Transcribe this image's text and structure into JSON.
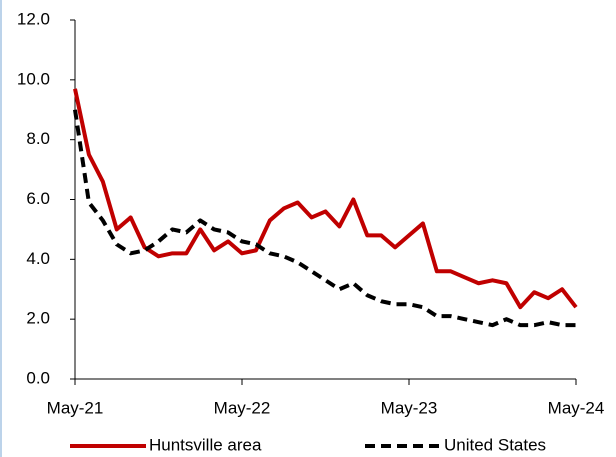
{
  "chart_data": {
    "type": "line",
    "categories": [
      "May-21",
      null,
      null,
      null,
      null,
      null,
      null,
      null,
      null,
      null,
      null,
      null,
      "May-22",
      null,
      null,
      null,
      null,
      null,
      null,
      null,
      null,
      null,
      null,
      null,
      "May-23",
      null,
      null,
      null,
      null,
      null,
      null,
      null,
      null,
      null,
      null,
      null,
      "May-24"
    ],
    "series": [
      {
        "name": "Huntsville area",
        "color": "#c00000",
        "dash": false,
        "values": [
          9.7,
          7.5,
          6.6,
          5.0,
          5.4,
          4.4,
          4.1,
          4.2,
          4.2,
          5.0,
          4.3,
          4.6,
          4.2,
          4.3,
          5.3,
          5.7,
          5.9,
          5.4,
          5.6,
          5.1,
          6.0,
          4.8,
          4.8,
          4.4,
          4.8,
          5.2,
          3.6,
          3.6,
          3.4,
          3.2,
          3.3,
          3.2,
          2.4,
          2.9,
          2.7,
          3.0,
          2.4
        ]
      },
      {
        "name": "United States",
        "color": "#000000",
        "dash": true,
        "values": [
          9.0,
          5.9,
          5.3,
          4.5,
          4.2,
          4.3,
          4.6,
          5.0,
          4.9,
          5.3,
          5.0,
          4.9,
          4.6,
          4.5,
          4.2,
          4.1,
          3.9,
          3.6,
          3.3,
          3.0,
          3.2,
          2.8,
          2.6,
          2.5,
          2.5,
          2.4,
          2.1,
          2.1,
          2.0,
          1.9,
          1.8,
          2.0,
          1.8,
          1.8,
          1.9,
          1.8,
          1.8
        ]
      }
    ],
    "ylim": [
      0,
      12
    ],
    "yticks": [
      {
        "value": 0,
        "label": "0.0"
      },
      {
        "value": 2,
        "label": "2.0"
      },
      {
        "value": 4,
        "label": "4.0"
      },
      {
        "value": 6,
        "label": "6.0"
      },
      {
        "value": 8,
        "label": "8.0"
      },
      {
        "value": 10,
        "label": "10.0"
      },
      {
        "value": 12,
        "label": "12.0"
      }
    ],
    "grid": false,
    "legend": "bottom"
  }
}
